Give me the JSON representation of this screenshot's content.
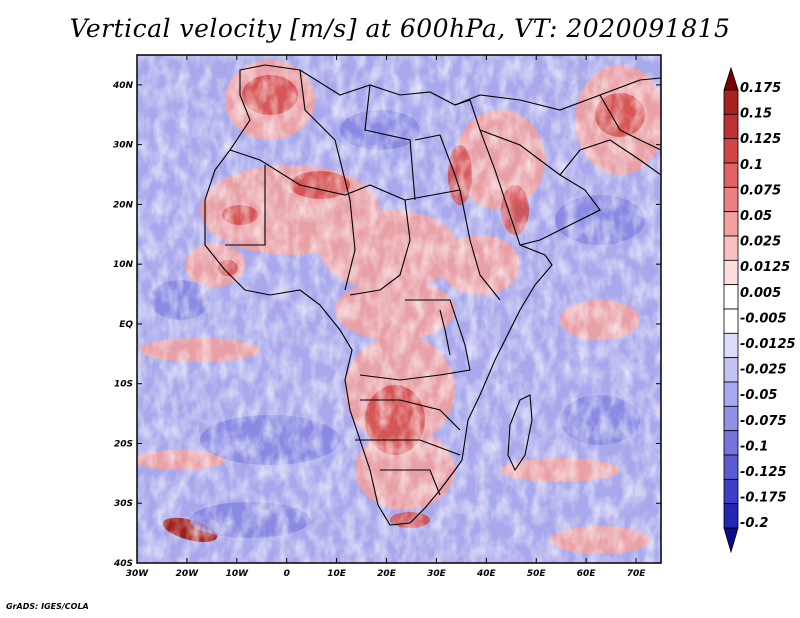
{
  "title": "Vertical velocity [m/s] at 600hPa, VT: 2020091815",
  "footer": "GrADS: IGES/COLA",
  "map": {
    "region": "Africa and surrounding oceans",
    "lon_range": [
      -30,
      75
    ],
    "lat_range": [
      -40,
      45
    ],
    "lon_ticks": [
      "30W",
      "20W",
      "10W",
      "0",
      "10E",
      "20E",
      "30E",
      "40E",
      "50E",
      "60E",
      "70E"
    ],
    "lat_ticks": [
      "40N",
      "30N",
      "20N",
      "10N",
      "EQ",
      "10S",
      "20S",
      "30S",
      "40S"
    ]
  },
  "colorbar": {
    "labels": [
      "0.175",
      "0.15",
      "0.125",
      "0.1",
      "0.075",
      "0.05",
      "0.025",
      "0.0125",
      "0.005",
      "-0.005",
      "-0.0125",
      "-0.025",
      "-0.05",
      "-0.075",
      "-0.1",
      "-0.125",
      "-0.175",
      "-0.2"
    ],
    "colors": [
      "#b41e1e",
      "#c83232",
      "#dc4b4b",
      "#e66464",
      "#ee8282",
      "#f4a0a0",
      "#f8bcbc",
      "#fcdada",
      "#ffffff",
      "#dcdcfa",
      "#c4c4f4",
      "#ababf0",
      "#9292e8",
      "#7878e0",
      "#5e5ed6",
      "#4444cc",
      "#2e2ec0",
      "#1a1aa8",
      "#0a0a8c",
      "#780000"
    ]
  }
}
